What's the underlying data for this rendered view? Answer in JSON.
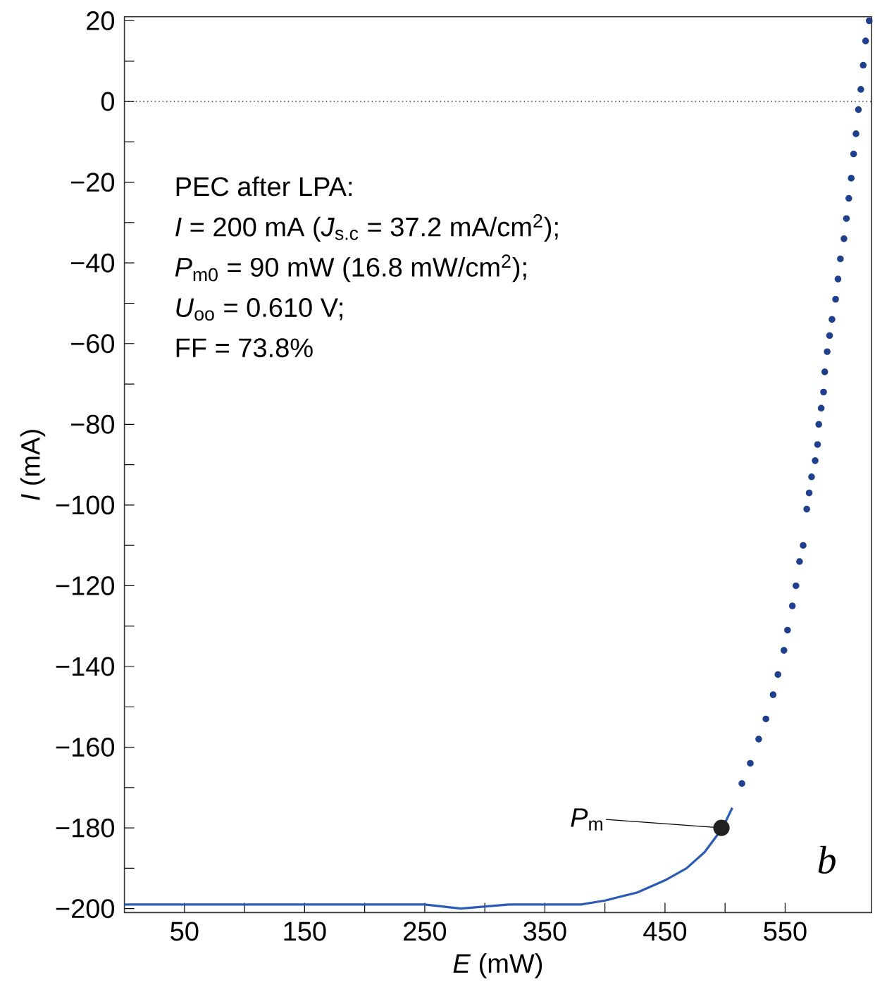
{
  "chart_data": {
    "type": "line",
    "xlabel": "*E* (mW)",
    "ylabel": "*I* (mA)",
    "xlim": [
      0,
      622
    ],
    "ylim": [
      -201,
      21
    ],
    "xticks": [
      {
        "value": 50,
        "label": "50"
      },
      {
        "value": 100,
        "label": null
      },
      {
        "value": 150,
        "label": "150"
      },
      {
        "value": 200,
        "label": null
      },
      {
        "value": 250,
        "label": "250"
      },
      {
        "value": 300,
        "label": null
      },
      {
        "value": 350,
        "label": "350"
      },
      {
        "value": 400,
        "label": null
      },
      {
        "value": 450,
        "label": "450"
      },
      {
        "value": 500,
        "label": null
      },
      {
        "value": 550,
        "label": "550"
      }
    ],
    "yticks": [
      {
        "value": 20,
        "label": "20"
      },
      {
        "value": 10,
        "label": null
      },
      {
        "value": 0,
        "label": "0"
      },
      {
        "value": -10,
        "label": null
      },
      {
        "value": -20,
        "label": "−20"
      },
      {
        "value": -30,
        "label": null
      },
      {
        "value": -40,
        "label": "−40"
      },
      {
        "value": -50,
        "label": null
      },
      {
        "value": -60,
        "label": "−60"
      },
      {
        "value": -70,
        "label": null
      },
      {
        "value": -80,
        "label": "−80"
      },
      {
        "value": -90,
        "label": null
      },
      {
        "value": -100,
        "label": "−100"
      },
      {
        "value": -110,
        "label": null
      },
      {
        "value": -120,
        "label": "−120"
      },
      {
        "value": -130,
        "label": null
      },
      {
        "value": -140,
        "label": "−140"
      },
      {
        "value": -150,
        "label": null
      },
      {
        "value": -160,
        "label": "−160"
      },
      {
        "value": -170,
        "label": null
      },
      {
        "value": -180,
        "label": "−180"
      },
      {
        "value": -190,
        "label": null
      },
      {
        "value": -200,
        "label": "−200"
      }
    ],
    "series": [
      {
        "color": "#2b5cb5",
        "marker": "none",
        "line_style": "solid",
        "x": [
          0,
          50,
          100,
          150,
          200,
          250,
          280,
          320,
          350,
          380,
          400,
          427,
          450,
          468,
          483,
          498,
          506
        ],
        "values": [
          -199,
          -199,
          -199,
          -199,
          -199,
          -199,
          -200,
          -199,
          -199,
          -199,
          -198,
          -196,
          -193,
          -190,
          -186,
          -180,
          -175
        ]
      },
      {
        "type": "scatter",
        "color": "#1f3f8f",
        "marker": "circle",
        "x": [
          514,
          521,
          528,
          534,
          540,
          544,
          549,
          552,
          556,
          559,
          562,
          565,
          568,
          570,
          572,
          575,
          577,
          578,
          580,
          582,
          583,
          585,
          587,
          589,
          592,
          594,
          596,
          599,
          601,
          603,
          605,
          607,
          609,
          611,
          613,
          615,
          617,
          620
        ],
        "values": [
          -169,
          -164,
          -158,
          -153,
          -147,
          -142,
          -136,
          -131,
          -125,
          -120,
          -114,
          -110,
          -101,
          -97,
          -93,
          -89,
          -85,
          -80,
          -76,
          -72,
          -67,
          -62,
          -58,
          -54,
          -49,
          -44,
          -39,
          -34,
          -29,
          -24,
          -19,
          -13,
          -8,
          -2,
          3,
          9,
          15,
          20
        ]
      },
      {
        "type": "scatter",
        "color": "#222222",
        "marker": "circle",
        "x": [
          497
        ],
        "values": [
          -180
        ]
      }
    ],
    "ref_lines": [
      {
        "axis": "y",
        "value": 0,
        "color": "#000000",
        "line_style": "dotted"
      }
    ],
    "annotations": [
      "PEC after LPA:",
      "*I* = 200 mA (*J*$_{s.c}$ = 37.2 mA/cm$^{2}$);",
      "*P*$_{m0}$ = 90 mW (16.8 mW/cm$^{2}$);",
      "*U*$_{oo}$ = 0.610 V;",
      "FF = 73.8%",
      "b",
      {
        "text": "*P*$_{m}$",
        "x": 497,
        "y": -180
      }
    ]
  }
}
